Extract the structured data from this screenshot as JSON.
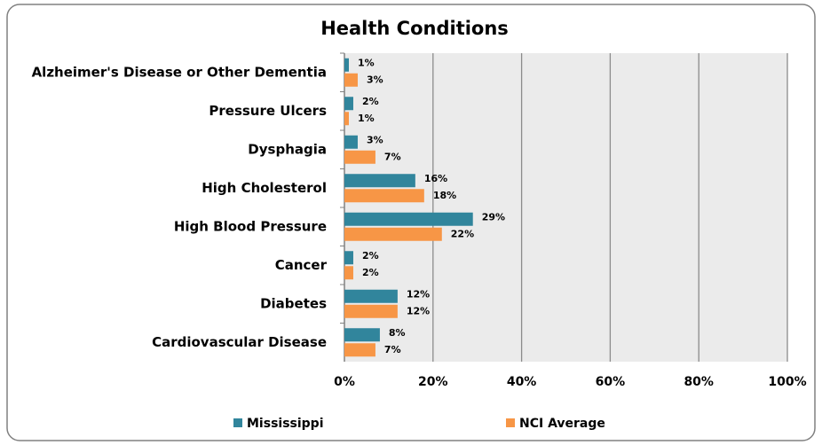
{
  "chart_data": {
    "type": "hbar",
    "title": "Health Conditions",
    "categories": [
      "Alzheimer's Disease or Other Dementia",
      "Pressure Ulcers",
      "Dysphagia",
      "High Cholesterol",
      "High Blood Pressure",
      "Cancer",
      "Diabetes",
      "Cardiovascular Disease"
    ],
    "series": [
      {
        "name": "Mississippi",
        "color": "#31859c",
        "values": [
          1,
          2,
          3,
          16,
          29,
          2,
          12,
          8
        ],
        "value_labels": [
          "1%",
          "2%",
          "3%",
          "16%",
          "29%",
          "2%",
          "12%",
          "8%"
        ]
      },
      {
        "name": "NCI Average",
        "color": "#f79646",
        "values": [
          3,
          1,
          7,
          18,
          22,
          2,
          12,
          7
        ],
        "value_labels": [
          "3%",
          "1%",
          "7%",
          "18%",
          "22%",
          "2%",
          "12%",
          "7%"
        ]
      }
    ],
    "xlim": [
      0,
      100
    ],
    "xticks": [
      {
        "value": 0,
        "label": "0%"
      },
      {
        "value": 20,
        "label": "20%"
      },
      {
        "value": 40,
        "label": "40%"
      },
      {
        "value": 60,
        "label": "60%"
      },
      {
        "value": 80,
        "label": "80%"
      },
      {
        "value": 100,
        "label": "100%"
      }
    ],
    "grid": true,
    "legend": "bottom"
  }
}
